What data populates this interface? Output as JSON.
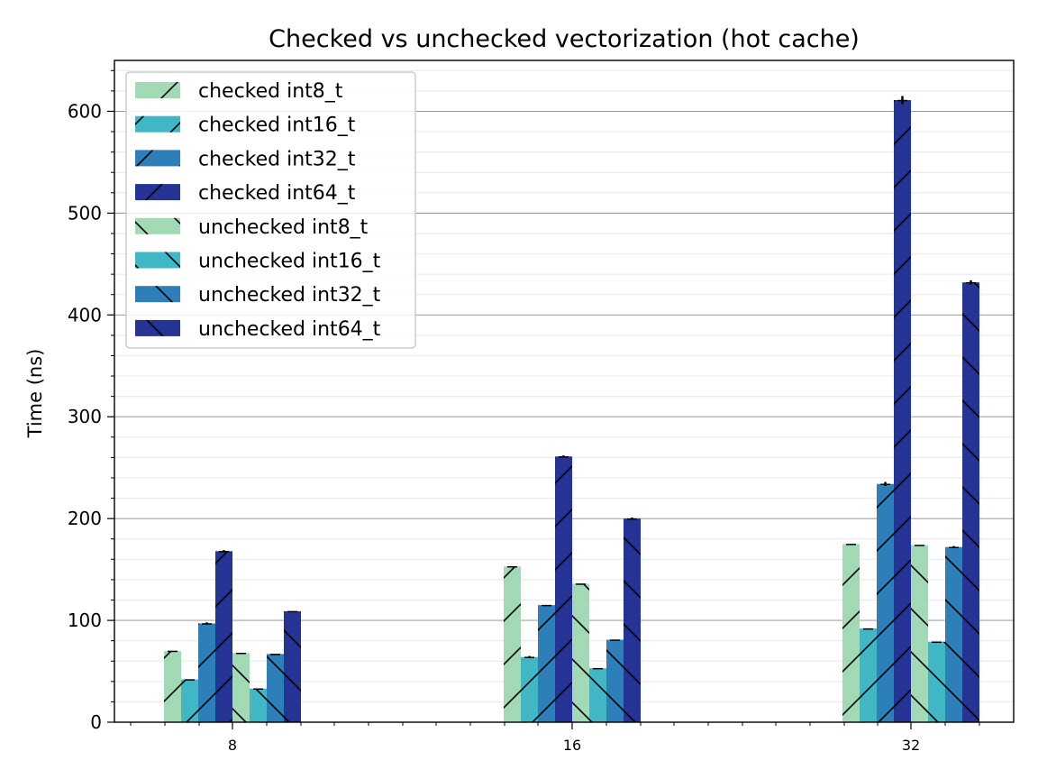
{
  "chart_data": {
    "type": "bar",
    "title": "Checked vs unchecked vectorization (hot cache)",
    "xlabel": "",
    "ylabel": "Time (ns)",
    "ylim": [
      0,
      650
    ],
    "yticks": [
      0,
      100,
      200,
      300,
      400,
      500,
      600
    ],
    "categories": [
      "8",
      "16",
      "32"
    ],
    "grid": "y-major-and-minor",
    "legend_position": "top-left",
    "series": [
      {
        "name": "checked int8_t",
        "values": [
          70,
          153,
          175
        ],
        "errors": [
          0,
          0,
          0
        ],
        "color": "#a1dab4",
        "hatch": "/"
      },
      {
        "name": "checked int16_t",
        "values": [
          42,
          64,
          92
        ],
        "errors": [
          0,
          1,
          0
        ],
        "color": "#41b6c4",
        "hatch": "/"
      },
      {
        "name": "checked int32_t",
        "values": [
          97,
          115,
          234
        ],
        "errors": [
          1,
          0,
          2
        ],
        "color": "#2c7fb8",
        "hatch": "/"
      },
      {
        "name": "checked int64_t",
        "values": [
          168,
          261,
          611
        ],
        "errors": [
          1,
          1,
          4
        ],
        "color": "#253494",
        "hatch": "/"
      },
      {
        "name": "unchecked int8_t",
        "values": [
          68,
          136,
          174
        ],
        "errors": [
          0,
          0,
          0
        ],
        "color": "#a1dab4",
        "hatch": "\\"
      },
      {
        "name": "unchecked int16_t",
        "values": [
          33,
          53,
          79
        ],
        "errors": [
          0,
          0,
          0
        ],
        "color": "#41b6c4",
        "hatch": "\\"
      },
      {
        "name": "unchecked int32_t",
        "values": [
          67,
          81,
          172
        ],
        "errors": [
          0,
          0,
          1
        ],
        "color": "#2c7fb8",
        "hatch": "\\"
      },
      {
        "name": "unchecked int64_t",
        "values": [
          109,
          200,
          432
        ],
        "errors": [
          0,
          1,
          2
        ],
        "color": "#253494",
        "hatch": "\\"
      }
    ]
  }
}
